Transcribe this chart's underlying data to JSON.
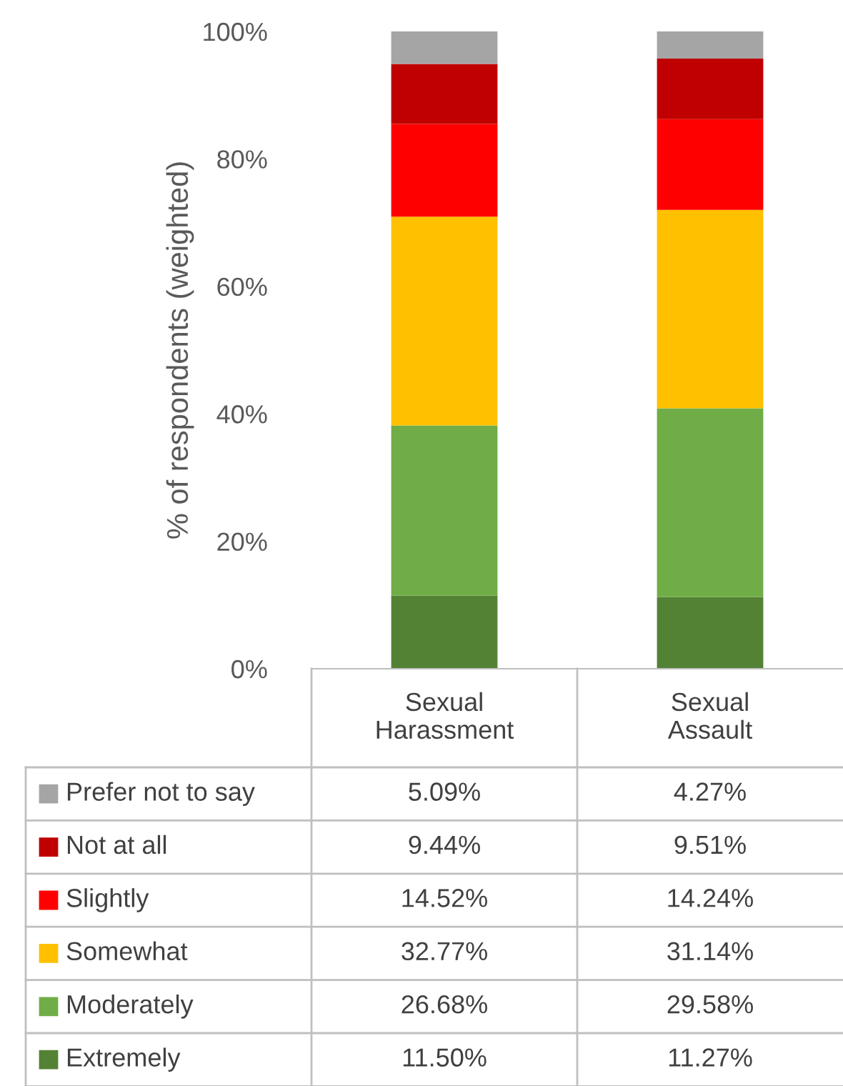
{
  "chart_data": {
    "type": "bar",
    "stacked": true,
    "ylabel": "% of respondents (weighted)",
    "categories": [
      "Sexual Harassment",
      "Sexual Assault"
    ],
    "ylim": [
      0,
      100
    ],
    "yticks": [
      {
        "value": 0,
        "label": "0%"
      },
      {
        "value": 20,
        "label": "20%"
      },
      {
        "value": 40,
        "label": "40%"
      },
      {
        "value": 60,
        "label": "60%"
      },
      {
        "value": 80,
        "label": "80%"
      },
      {
        "value": 100,
        "label": "100%"
      }
    ],
    "grid": false,
    "legend": "bottom",
    "series": [
      {
        "name": "Extremely",
        "color": "#548235",
        "values": [
          11.5,
          11.27
        ],
        "value_labels": [
          "11.50%",
          "11.27%"
        ]
      },
      {
        "name": "Moderately",
        "color": "#70ad47",
        "values": [
          26.68,
          29.58
        ],
        "value_labels": [
          "26.68%",
          "29.58%"
        ]
      },
      {
        "name": "Somewhat",
        "color": "#ffc000",
        "values": [
          32.77,
          31.14
        ],
        "value_labels": [
          "32.77%",
          "31.14%"
        ]
      },
      {
        "name": "Slightly",
        "color": "#ff0000",
        "values": [
          14.52,
          14.24
        ],
        "value_labels": [
          "14.52%",
          "14.24%"
        ]
      },
      {
        "name": "Not at all",
        "color": "#c00000",
        "values": [
          9.44,
          9.51
        ],
        "value_labels": [
          "9.44%",
          "9.51%"
        ]
      },
      {
        "name": "Prefer not to say",
        "color": "#a5a5a5",
        "values": [
          5.09,
          4.27
        ],
        "value_labels": [
          "5.09%",
          "4.27%"
        ]
      }
    ]
  }
}
